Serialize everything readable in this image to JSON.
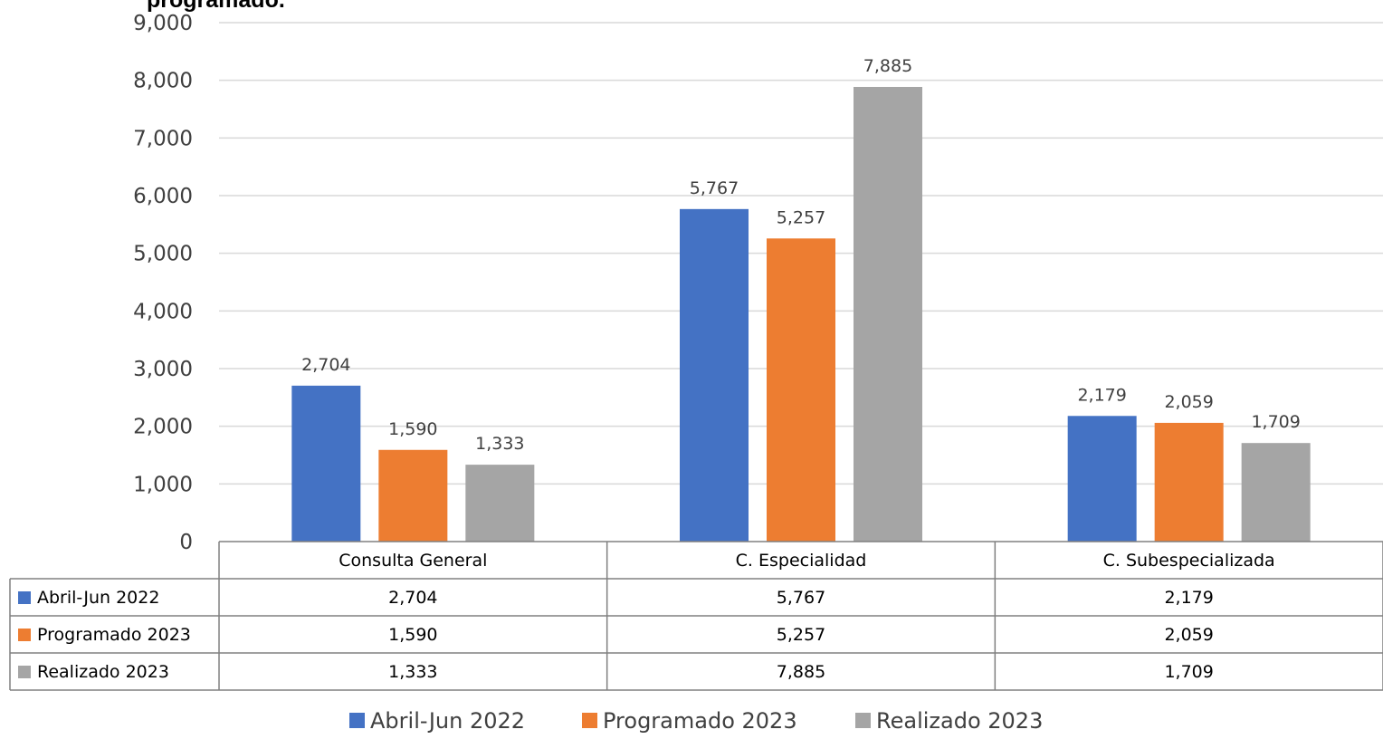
{
  "chart_data": {
    "type": "bar",
    "title": "programado.",
    "categories": [
      "Consulta General",
      "C. Especialidad",
      "C. Subespecializada"
    ],
    "series": [
      {
        "name": "Abril-Jun 2022",
        "color": "#4472C4",
        "values": [
          2704,
          5767,
          2179
        ]
      },
      {
        "name": "Programado 2023",
        "color": "#ED7D31",
        "values": [
          1590,
          5257,
          2059
        ]
      },
      {
        "name": "Realizado 2023",
        "color": "#A5A5A5",
        "values": [
          1333,
          7885,
          1709
        ]
      }
    ],
    "ylim": [
      0,
      9000
    ],
    "yticks": [
      0,
      1000,
      2000,
      3000,
      4000,
      5000,
      6000,
      7000,
      8000,
      9000
    ],
    "grid": true,
    "data_table": true,
    "legend": "bottom"
  }
}
